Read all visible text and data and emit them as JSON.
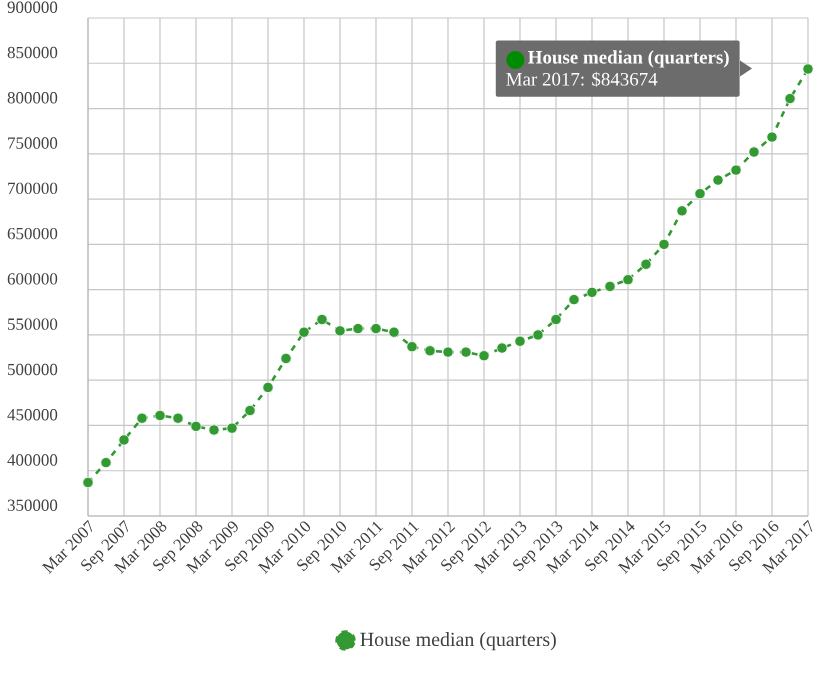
{
  "chart_data": {
    "type": "line",
    "categories": [
      "Mar 2007",
      null,
      "Sep 2007",
      null,
      "Mar 2008",
      null,
      "Sep 2008",
      null,
      "Mar 2009",
      null,
      "Sep 2009",
      null,
      "Mar 2010",
      null,
      "Sep 2010",
      null,
      "Mar 2011",
      null,
      "Sep 2011",
      null,
      "Mar 2012",
      null,
      "Sep 2012",
      null,
      "Mar 2013",
      null,
      "Sep 2013",
      null,
      "Mar 2014",
      null,
      "Sep 2014",
      null,
      "Mar 2015",
      null,
      "Sep 2015",
      null,
      "Mar 2016",
      null,
      "Sep 2016",
      null,
      "Mar 2017"
    ],
    "series": [
      {
        "name": "House median (quarters)",
        "color": "#339933",
        "values": [
          387000,
          409000,
          434000,
          458000,
          461000,
          458000,
          449000,
          445000,
          447000,
          466500,
          492000,
          524000,
          553000,
          567000,
          554500,
          557000,
          557000,
          553000,
          537000,
          532500,
          531000,
          531000,
          527000,
          535500,
          543000,
          550000,
          567000,
          589000,
          597000,
          603600,
          611000,
          628000,
          650000,
          687000,
          706000,
          721000,
          732000,
          752000,
          768500,
          811000,
          843674
        ]
      }
    ],
    "ylim": [
      350000,
      900000
    ],
    "yticks": [
      350000,
      400000,
      450000,
      500000,
      550000,
      600000,
      650000,
      700000,
      750000,
      800000,
      850000,
      900000
    ],
    "grid": true,
    "legend": "bottom",
    "marker": "circle",
    "line_style": "dashed",
    "annotations": [
      "House median (quarters)",
      "Mar 2017: $843674"
    ]
  }
}
